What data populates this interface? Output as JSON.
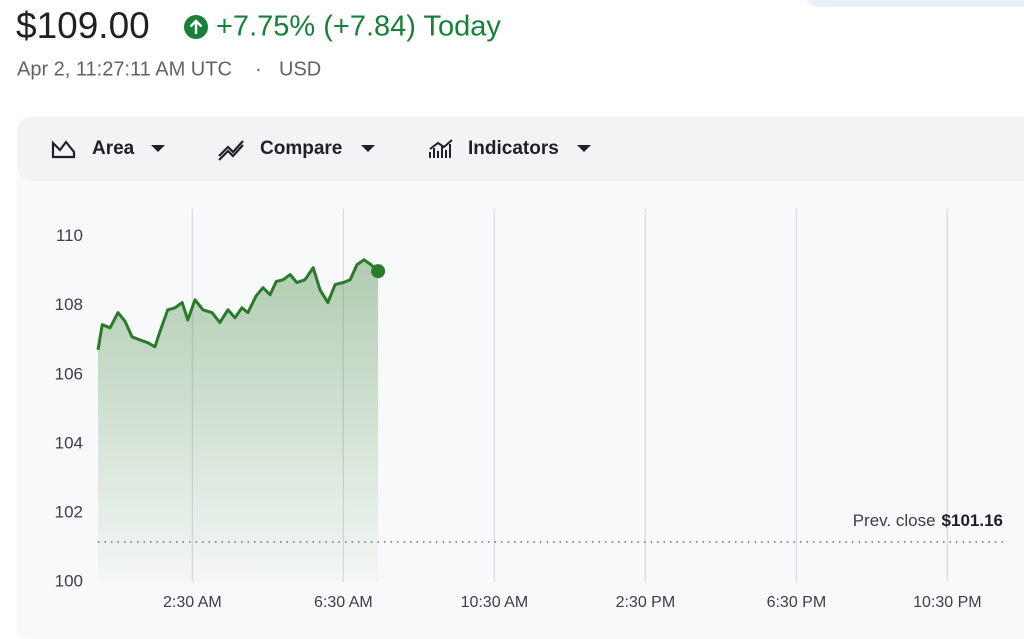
{
  "header": {
    "price": "$109.00",
    "change": "+7.75% (+7.84) Today",
    "timestamp": "Apr 2, 11:27:11 AM UTC",
    "separator": "·",
    "currency": "USD"
  },
  "toolbar": {
    "buttons": [
      "Area",
      "Compare",
      "Indicators"
    ]
  },
  "chart_data": {
    "type": "area",
    "color": "#2a7a2a",
    "x": [
      0,
      0.11,
      0.32,
      0.53,
      0.72,
      0.9,
      1.11,
      1.32,
      1.51,
      1.64,
      1.85,
      2.04,
      2.23,
      2.38,
      2.57,
      2.78,
      3.02,
      3.23,
      3.44,
      3.63,
      3.81,
      3.97,
      4.19,
      4.37,
      4.56,
      4.72,
      4.9,
      5.09,
      5.27,
      5.48,
      5.7,
      5.88,
      6.09,
      6.28,
      6.49,
      6.68,
      6.86,
      7.05,
      7.23,
      7.42
    ],
    "values": [
      106.72,
      107.45,
      107.36,
      107.8,
      107.54,
      107.1,
      107.01,
      106.93,
      106.81,
      107.25,
      107.88,
      107.94,
      108.09,
      107.59,
      108.17,
      107.88,
      107.8,
      107.51,
      107.88,
      107.65,
      107.94,
      107.8,
      108.29,
      108.52,
      108.32,
      108.7,
      108.75,
      108.9,
      108.67,
      108.75,
      109.1,
      108.46,
      108.09,
      108.61,
      108.67,
      108.75,
      109.19,
      109.33,
      109.19,
      109.0
    ],
    "xlim": [
      0,
      24
    ],
    "xticks": [
      {
        "value": 2.5,
        "label": "2:30 AM"
      },
      {
        "value": 6.5,
        "label": "6:30 AM"
      },
      {
        "value": 10.5,
        "label": "10:30 AM"
      },
      {
        "value": 14.5,
        "label": "2:30 PM"
      },
      {
        "value": 18.5,
        "label": "6:30 PM"
      },
      {
        "value": 22.5,
        "label": "10:30 PM"
      }
    ],
    "ylim": [
      100,
      110.8
    ],
    "yticks": [
      100,
      102,
      104,
      106,
      108,
      110
    ],
    "grid": true,
    "reference_line": {
      "label": "Prev. close",
      "value": 101.16,
      "value_label": "$101.16"
    }
  }
}
